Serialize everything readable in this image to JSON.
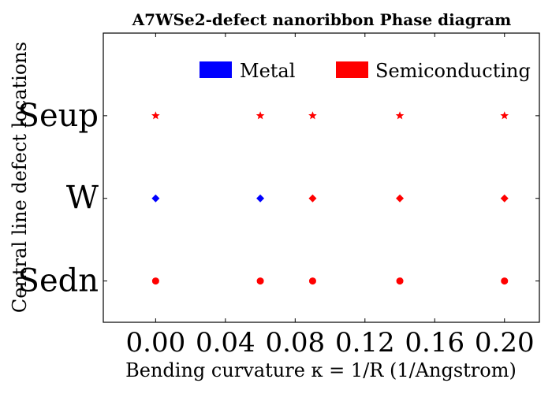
{
  "chart_data": {
    "type": "scatter",
    "title": "A7WSe2-defect nanoribbon Phase diagram",
    "xlabel": "Bending curvature κ = 1/R (1/Angstrom)",
    "ylabel": "Central line defect locations",
    "xlim": [
      -0.03,
      0.22
    ],
    "x_ticks": [
      0.0,
      0.04,
      0.08,
      0.12,
      0.16,
      0.2
    ],
    "x_tick_labels": [
      "0.00",
      "0.04",
      "0.08",
      "0.12",
      "0.16",
      "0.20"
    ],
    "categories": [
      "Sedn",
      "W",
      "Seup"
    ],
    "ylim": [
      -0.5,
      3.0
    ],
    "grid": false,
    "legend_position": "top",
    "legend": [
      {
        "label": "Metal",
        "color": "#0000ff"
      },
      {
        "label": "Semiconducting",
        "color": "#ff0000"
      }
    ],
    "series": [
      {
        "category": "Seup",
        "marker": "star",
        "points": [
          {
            "x": 0.0,
            "phase": "Semiconducting"
          },
          {
            "x": 0.06,
            "phase": "Semiconducting"
          },
          {
            "x": 0.09,
            "phase": "Semiconducting"
          },
          {
            "x": 0.14,
            "phase": "Semiconducting"
          },
          {
            "x": 0.2,
            "phase": "Semiconducting"
          }
        ]
      },
      {
        "category": "W",
        "marker": "diamond",
        "points": [
          {
            "x": 0.0,
            "phase": "Metal"
          },
          {
            "x": 0.06,
            "phase": "Metal"
          },
          {
            "x": 0.09,
            "phase": "Semiconducting"
          },
          {
            "x": 0.14,
            "phase": "Semiconducting"
          },
          {
            "x": 0.2,
            "phase": "Semiconducting"
          }
        ]
      },
      {
        "category": "Sedn",
        "marker": "circle",
        "points": [
          {
            "x": 0.0,
            "phase": "Semiconducting"
          },
          {
            "x": 0.06,
            "phase": "Semiconducting"
          },
          {
            "x": 0.09,
            "phase": "Semiconducting"
          },
          {
            "x": 0.14,
            "phase": "Semiconducting"
          },
          {
            "x": 0.2,
            "phase": "Semiconducting"
          }
        ]
      }
    ]
  }
}
